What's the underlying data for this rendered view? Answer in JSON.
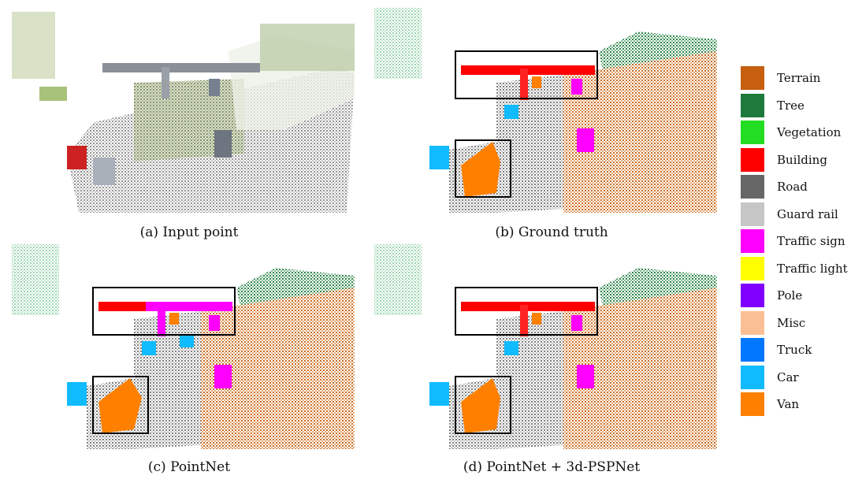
{
  "panels": [
    {
      "id": "a",
      "caption": "(a) Input point"
    },
    {
      "id": "b",
      "caption": "(b) Ground truth"
    },
    {
      "id": "c",
      "caption": "(c) PointNet"
    },
    {
      "id": "d",
      "caption": "(d) PointNet + 3d-PSPNet"
    }
  ],
  "legend": [
    {
      "label": "Terrain",
      "color": "#c65f10"
    },
    {
      "label": "Tree",
      "color": "#1e7a3c"
    },
    {
      "label": "Vegetation",
      "color": "#22dd22"
    },
    {
      "label": "Building",
      "color": "#ff0000"
    },
    {
      "label": "Road",
      "color": "#666666"
    },
    {
      "label": "Guard rail",
      "color": "#c6c6c6"
    },
    {
      "label": "Traffic sign",
      "color": "#ff00ff"
    },
    {
      "label": "Traffic light",
      "color": "#ffff00"
    },
    {
      "label": "Pole",
      "color": "#7f00ff"
    },
    {
      "label": "Misc",
      "color": "#fbbf95"
    },
    {
      "label": "Truck",
      "color": "#0077ff"
    },
    {
      "label": "Car",
      "color": "#11bbff"
    },
    {
      "label": "Van",
      "color": "#ff8000"
    }
  ]
}
